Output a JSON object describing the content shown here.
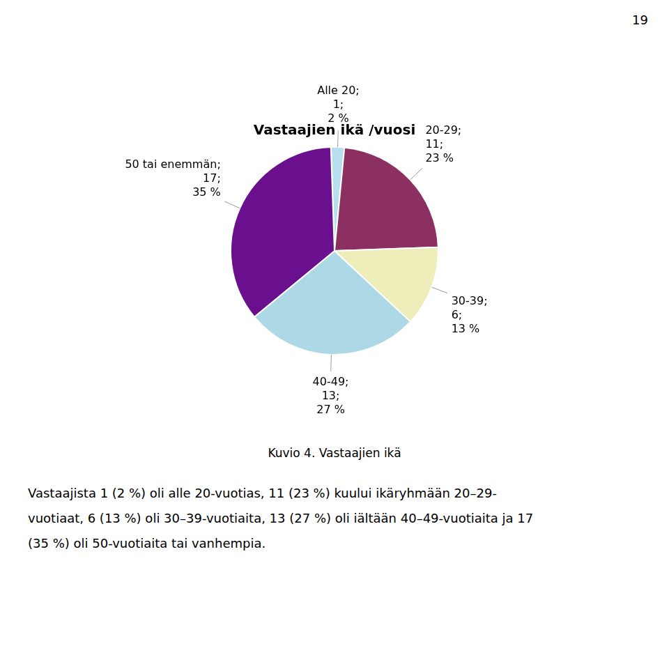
{
  "chart_data": {
    "type": "pie",
    "title": "Vastaajien ikä /vuosi",
    "categories": [
      "Alle 20;\n1;\n2 %",
      "20-29;\n11;\n23 %",
      "30-39;\n6;\n13 %",
      "40-49;\n13;\n27 %",
      "50 tai enemmän;\n17;\n35 %"
    ],
    "values": [
      1,
      11,
      6,
      13,
      17
    ],
    "colors": [
      "#b8dff0",
      "#8b3060",
      "#eeeebb",
      "#add8e6",
      "#6a0f8e"
    ]
  },
  "caption": "Kuvio 4. Vastaajien ikä",
  "body_lines": [
    "Vastaajista 1 (2 %) oli alle 20-vuotias, 11 (23 %) kuului ikäryhmään 20–29-",
    "vuotiaat, 6 (13 %) oli 30–39-vuotiaita, 13 (27 %) oli iältään 40–49-vuotiaita ja 17",
    "(35 %) oli 50-vuotiaita tai vanhempia."
  ],
  "page_number": "19"
}
